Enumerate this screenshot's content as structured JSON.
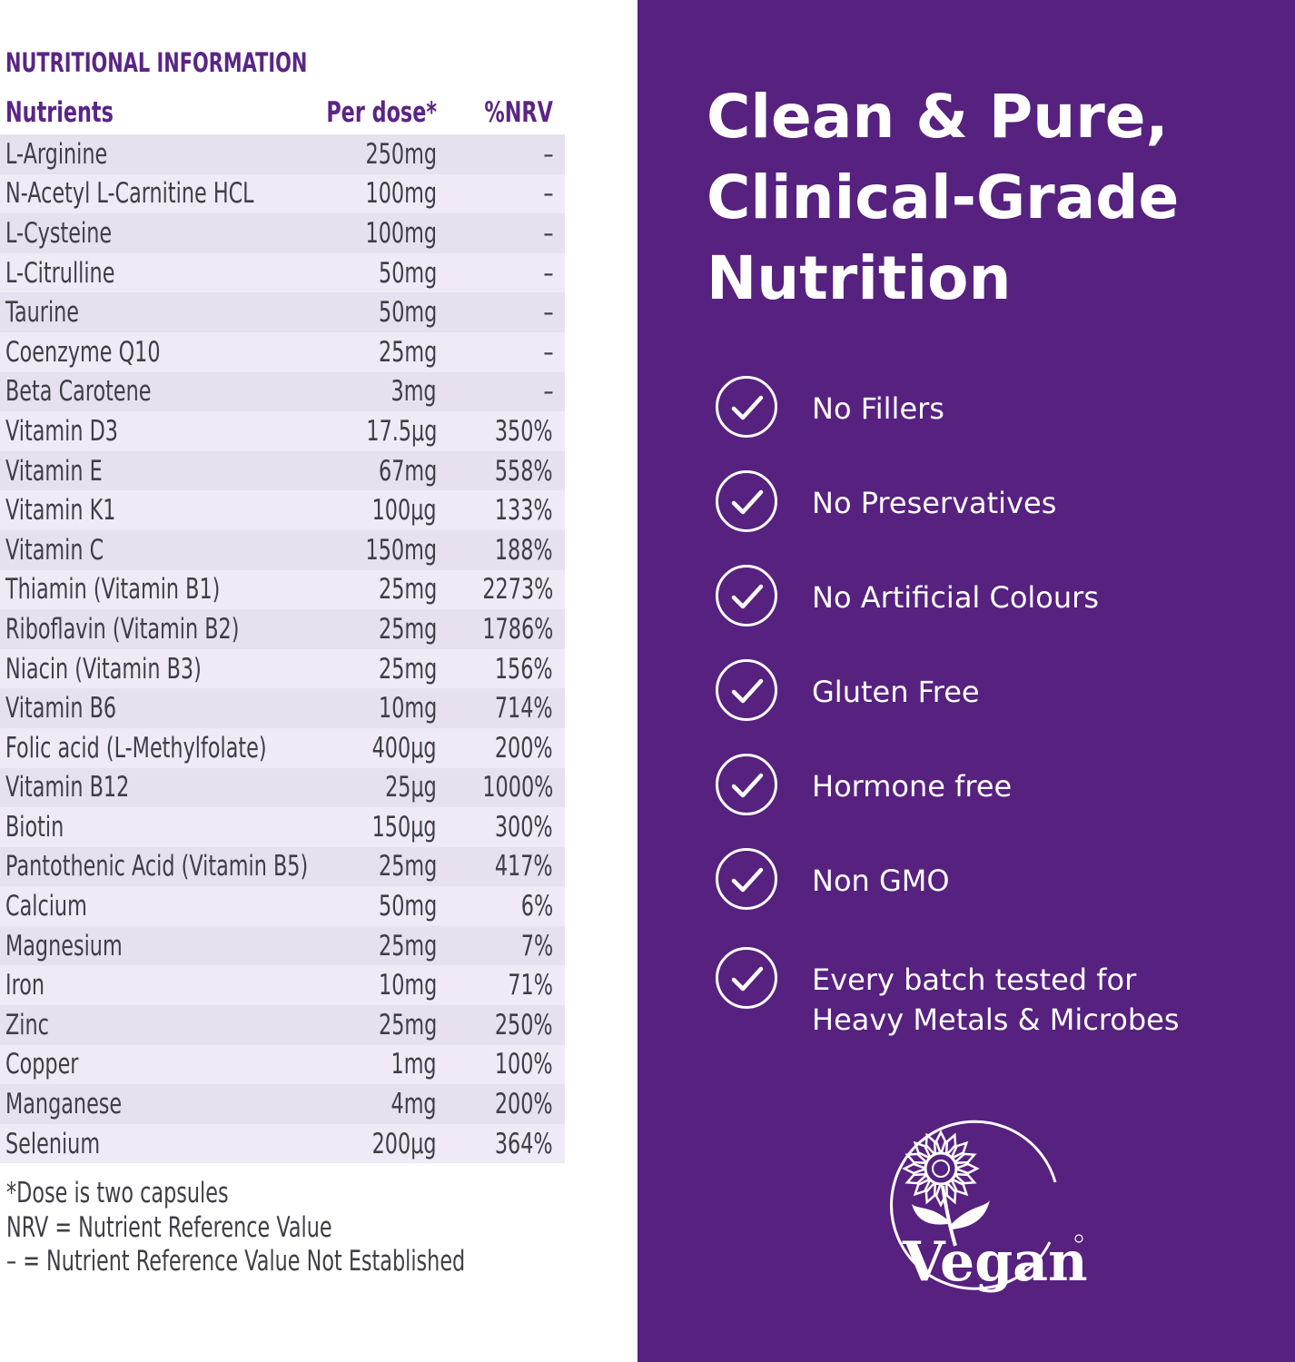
{
  "nutrition": {
    "title": "NUTRITIONAL INFORMATION",
    "headers": {
      "nutrient": "Nutrients",
      "dose": "Per dose*",
      "nrv": "%NRV"
    },
    "rows": [
      {
        "nutrient": "L-Arginine",
        "dose": "250mg",
        "nrv": "–"
      },
      {
        "nutrient": "N-Acetyl L-Carnitine HCL",
        "dose": "100mg",
        "nrv": "–"
      },
      {
        "nutrient": "L-Cysteine",
        "dose": "100mg",
        "nrv": "–"
      },
      {
        "nutrient": "L-Citrulline",
        "dose": "50mg",
        "nrv": "–"
      },
      {
        "nutrient": "Taurine",
        "dose": "50mg",
        "nrv": "–"
      },
      {
        "nutrient": "Coenzyme Q10",
        "dose": "25mg",
        "nrv": "–"
      },
      {
        "nutrient": "Beta Carotene",
        "dose": "3mg",
        "nrv": "–"
      },
      {
        "nutrient": "Vitamin D3",
        "dose": "17.5µg",
        "nrv": "350%"
      },
      {
        "nutrient": "Vitamin E",
        "dose": "67mg",
        "nrv": "558%"
      },
      {
        "nutrient": "Vitamin K1",
        "dose": "100µg",
        "nrv": "133%"
      },
      {
        "nutrient": "Vitamin C",
        "dose": "150mg",
        "nrv": "188%"
      },
      {
        "nutrient": "Thiamin (Vitamin B1)",
        "dose": "25mg",
        "nrv": "2273%"
      },
      {
        "nutrient": "Riboflavin (Vitamin B2)",
        "dose": "25mg",
        "nrv": "1786%"
      },
      {
        "nutrient": "Niacin (Vitamin B3)",
        "dose": "25mg",
        "nrv": "156%"
      },
      {
        "nutrient": "Vitamin B6",
        "dose": "10mg",
        "nrv": "714%"
      },
      {
        "nutrient": "Folic acid (L-Methylfolate)",
        "dose": "400µg",
        "nrv": "200%"
      },
      {
        "nutrient": "Vitamin B12",
        "dose": "25µg",
        "nrv": "1000%"
      },
      {
        "nutrient": "Biotin",
        "dose": "150µg",
        "nrv": "300%"
      },
      {
        "nutrient": "Pantothenic Acid (Vitamin B5)",
        "dose": "25mg",
        "nrv": "417%"
      },
      {
        "nutrient": "Calcium",
        "dose": "50mg",
        "nrv": "6%"
      },
      {
        "nutrient": "Magnesium",
        "dose": "25mg",
        "nrv": "7%"
      },
      {
        "nutrient": "Iron",
        "dose": "10mg",
        "nrv": "71%"
      },
      {
        "nutrient": "Zinc",
        "dose": "25mg",
        "nrv": "250%"
      },
      {
        "nutrient": "Copper",
        "dose": "1mg",
        "nrv": "100%"
      },
      {
        "nutrient": "Manganese",
        "dose": "4mg",
        "nrv": "200%"
      },
      {
        "nutrient": "Selenium",
        "dose": "200µg",
        "nrv": "364%"
      }
    ],
    "footnotes": [
      "*Dose is two capsules",
      "NRV = Nutrient Reference Value",
      "– = Nutrient Reference Value Not Established"
    ]
  },
  "promo": {
    "headline_lines": [
      "Clean & Pure,",
      "Clinical-Grade",
      "Nutrition"
    ],
    "features": [
      {
        "icon": "check-circle-icon",
        "lines": [
          "No Fillers"
        ]
      },
      {
        "icon": "check-circle-icon",
        "lines": [
          "No Preservatives"
        ]
      },
      {
        "icon": "check-circle-icon",
        "lines": [
          "No Artificial Colours"
        ]
      },
      {
        "icon": "check-circle-icon",
        "lines": [
          "Gluten Free"
        ]
      },
      {
        "icon": "check-circle-icon",
        "lines": [
          "Hormone free"
        ]
      },
      {
        "icon": "check-circle-icon",
        "lines": [
          "Non GMO"
        ]
      },
      {
        "icon": "check-circle-icon",
        "lines": [
          "Every batch tested for",
          "Heavy Metals & Microbes"
        ]
      }
    ],
    "badge": {
      "icon": "vegan-sunflower-logo",
      "text": "Vegan"
    }
  },
  "colors": {
    "brand_purple": "#56217f",
    "heading_purple": "#5a2585",
    "row_odd": "#e7e0ef",
    "row_even": "#efeaf5",
    "body_text": "#3f3f46"
  }
}
